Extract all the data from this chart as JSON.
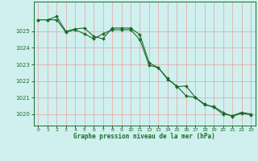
{
  "title": "Graphe pression niveau de la mer (hPa)",
  "bg_color": "#cff0ee",
  "grid_color_major": "#e8a0a0",
  "grid_color_minor": "#e8c8c8",
  "line_color": "#1a6b2a",
  "border_color": "#1a6b2a",
  "xlim": [
    -0.5,
    23.5
  ],
  "ylim": [
    1019.3,
    1026.8
  ],
  "yticks": [
    1020,
    1021,
    1022,
    1023,
    1024,
    1025
  ],
  "xticks": [
    0,
    1,
    2,
    3,
    4,
    5,
    6,
    7,
    8,
    9,
    10,
    11,
    12,
    13,
    14,
    15,
    16,
    17,
    18,
    19,
    20,
    21,
    22,
    23
  ],
  "series1_x": [
    0,
    1,
    2,
    3,
    4,
    5,
    6,
    7,
    8,
    9,
    10,
    11,
    12,
    13,
    14,
    15,
    16,
    17,
    18,
    19,
    20,
    21,
    22,
    23
  ],
  "series1_y": [
    1025.7,
    1025.7,
    1025.9,
    1025.0,
    1025.15,
    1025.2,
    1024.7,
    1024.55,
    1025.2,
    1025.2,
    1025.2,
    1024.8,
    1023.1,
    1022.8,
    1022.1,
    1021.7,
    1021.1,
    1021.0,
    1020.6,
    1020.4,
    1020.0,
    1019.9,
    1020.1,
    1020.0
  ],
  "series2_x": [
    0,
    1,
    2,
    3,
    4,
    5,
    6,
    7,
    8,
    9,
    10,
    11,
    12,
    13,
    14,
    15,
    16,
    17,
    18,
    19,
    20,
    21,
    22,
    23
  ],
  "series2_y": [
    1025.7,
    1025.7,
    1025.7,
    1024.95,
    1025.1,
    1024.85,
    1024.55,
    1024.85,
    1025.1,
    1025.1,
    1025.1,
    1024.5,
    1022.95,
    1022.8,
    1022.15,
    1021.65,
    1021.7,
    1021.0,
    1020.55,
    1020.45,
    1020.1,
    1019.85,
    1020.05,
    1019.95
  ]
}
